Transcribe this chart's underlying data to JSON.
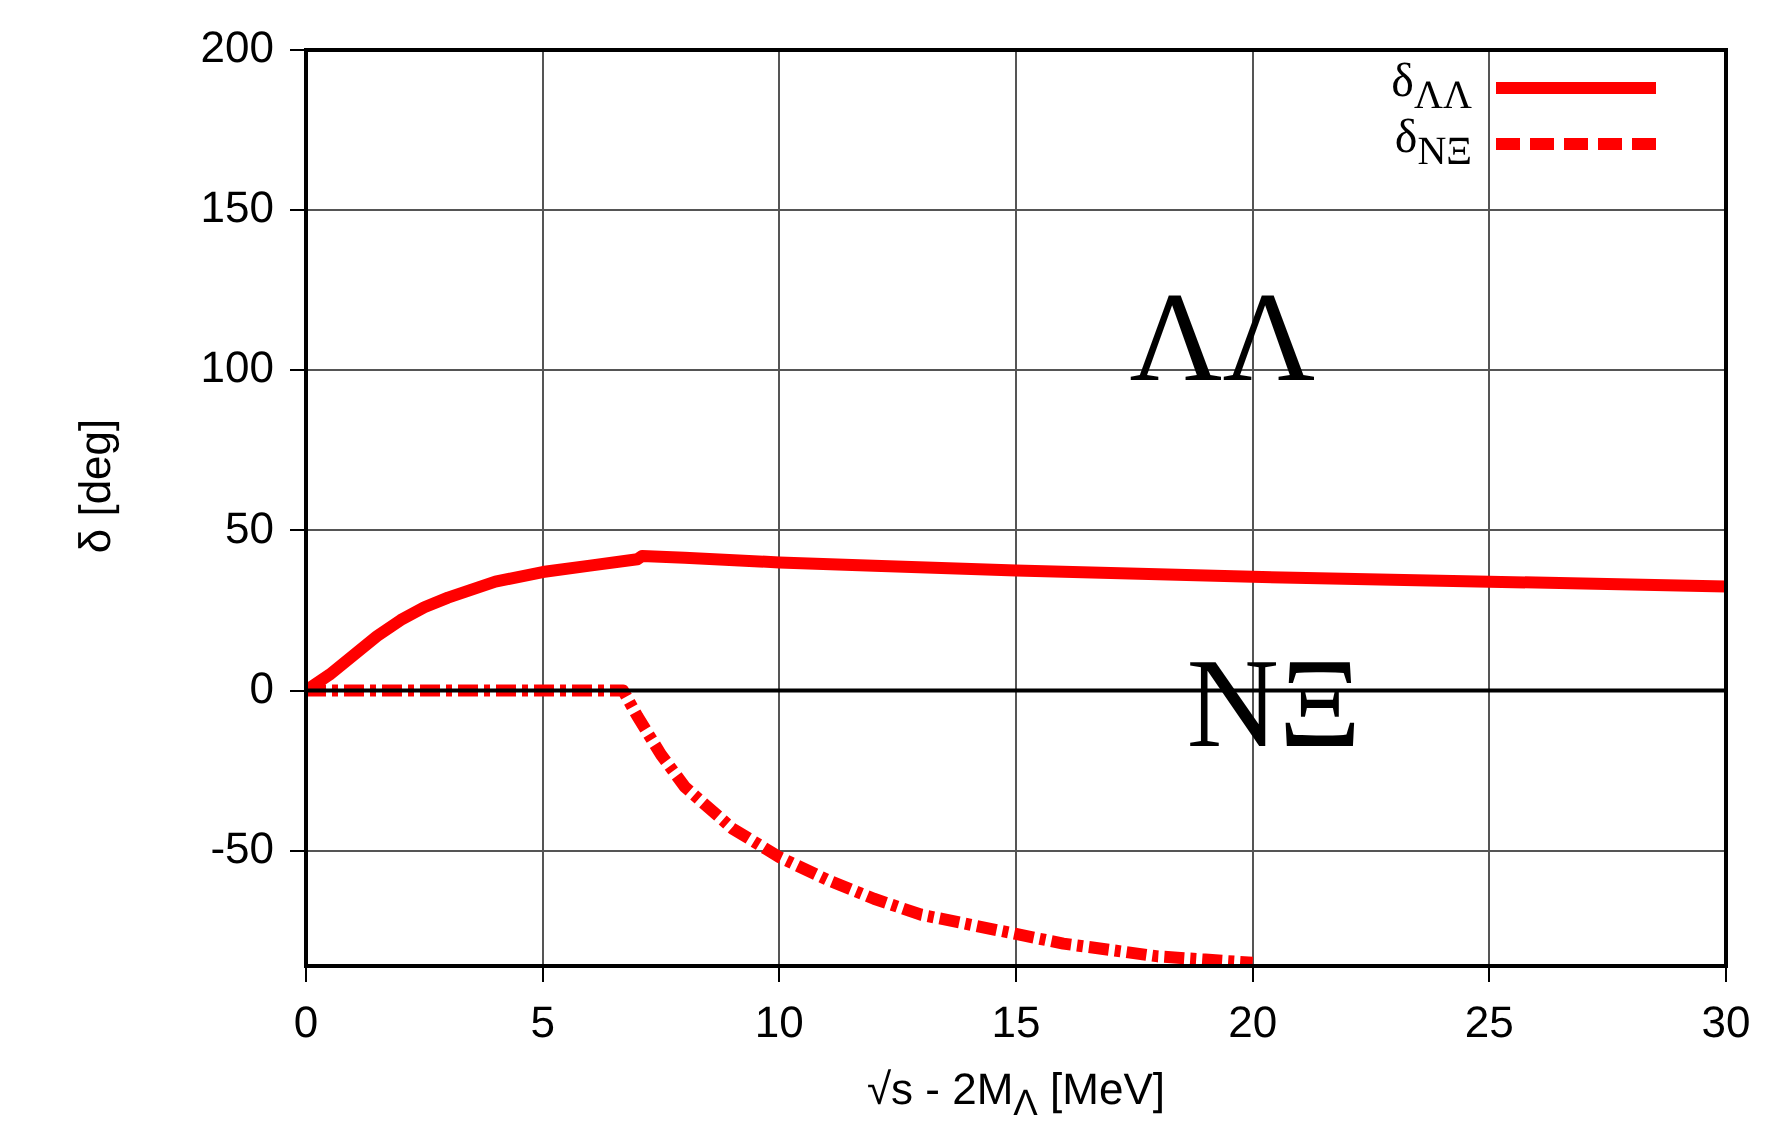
{
  "chart_data": {
    "type": "line",
    "xlabel": "√s - 2M$_{Λ}$ [MeV]",
    "ylabel": "δ [deg]",
    "xlim": [
      0,
      30
    ],
    "xticks": [
      0,
      5,
      10,
      15,
      20,
      25,
      30
    ],
    "ylim": [
      -86,
      200
    ],
    "yticks": [
      -50,
      0,
      50,
      100,
      150,
      200
    ],
    "grid": true,
    "legend": "top right",
    "marker": "none",
    "ref_lines": [
      {
        "axis": "y",
        "value": 0,
        "color": "#000000"
      }
    ],
    "annotations": [
      "ΛΛ",
      "NΞ"
    ],
    "series": [
      {
        "name": "δ$_{ΛΛ}$",
        "color": "#ff0000",
        "line_style": "solid",
        "x": [
          0,
          0.5,
          1,
          1.5,
          2,
          2.5,
          3,
          4,
          5,
          6,
          7,
          7.1,
          8,
          10,
          12,
          15,
          20,
          25,
          30
        ],
        "values": [
          0,
          5,
          11,
          17,
          22,
          26,
          29,
          34,
          37,
          39,
          41,
          42,
          41.5,
          40,
          39,
          37.5,
          35.5,
          34,
          32.5
        ]
      },
      {
        "name": "δ$_{NΞ}$",
        "color": "#ff0000",
        "line_style": "dashed",
        "x": [
          0,
          6.7,
          7,
          7.5,
          8,
          9,
          10,
          11,
          12,
          13,
          14,
          15,
          16,
          17,
          18,
          19,
          20
        ],
        "values": [
          0,
          0,
          -8,
          -20,
          -30,
          -43,
          -52,
          -59,
          -65,
          -70,
          -73,
          -76,
          -79,
          -81,
          -83,
          -84,
          -85
        ]
      }
    ]
  }
}
